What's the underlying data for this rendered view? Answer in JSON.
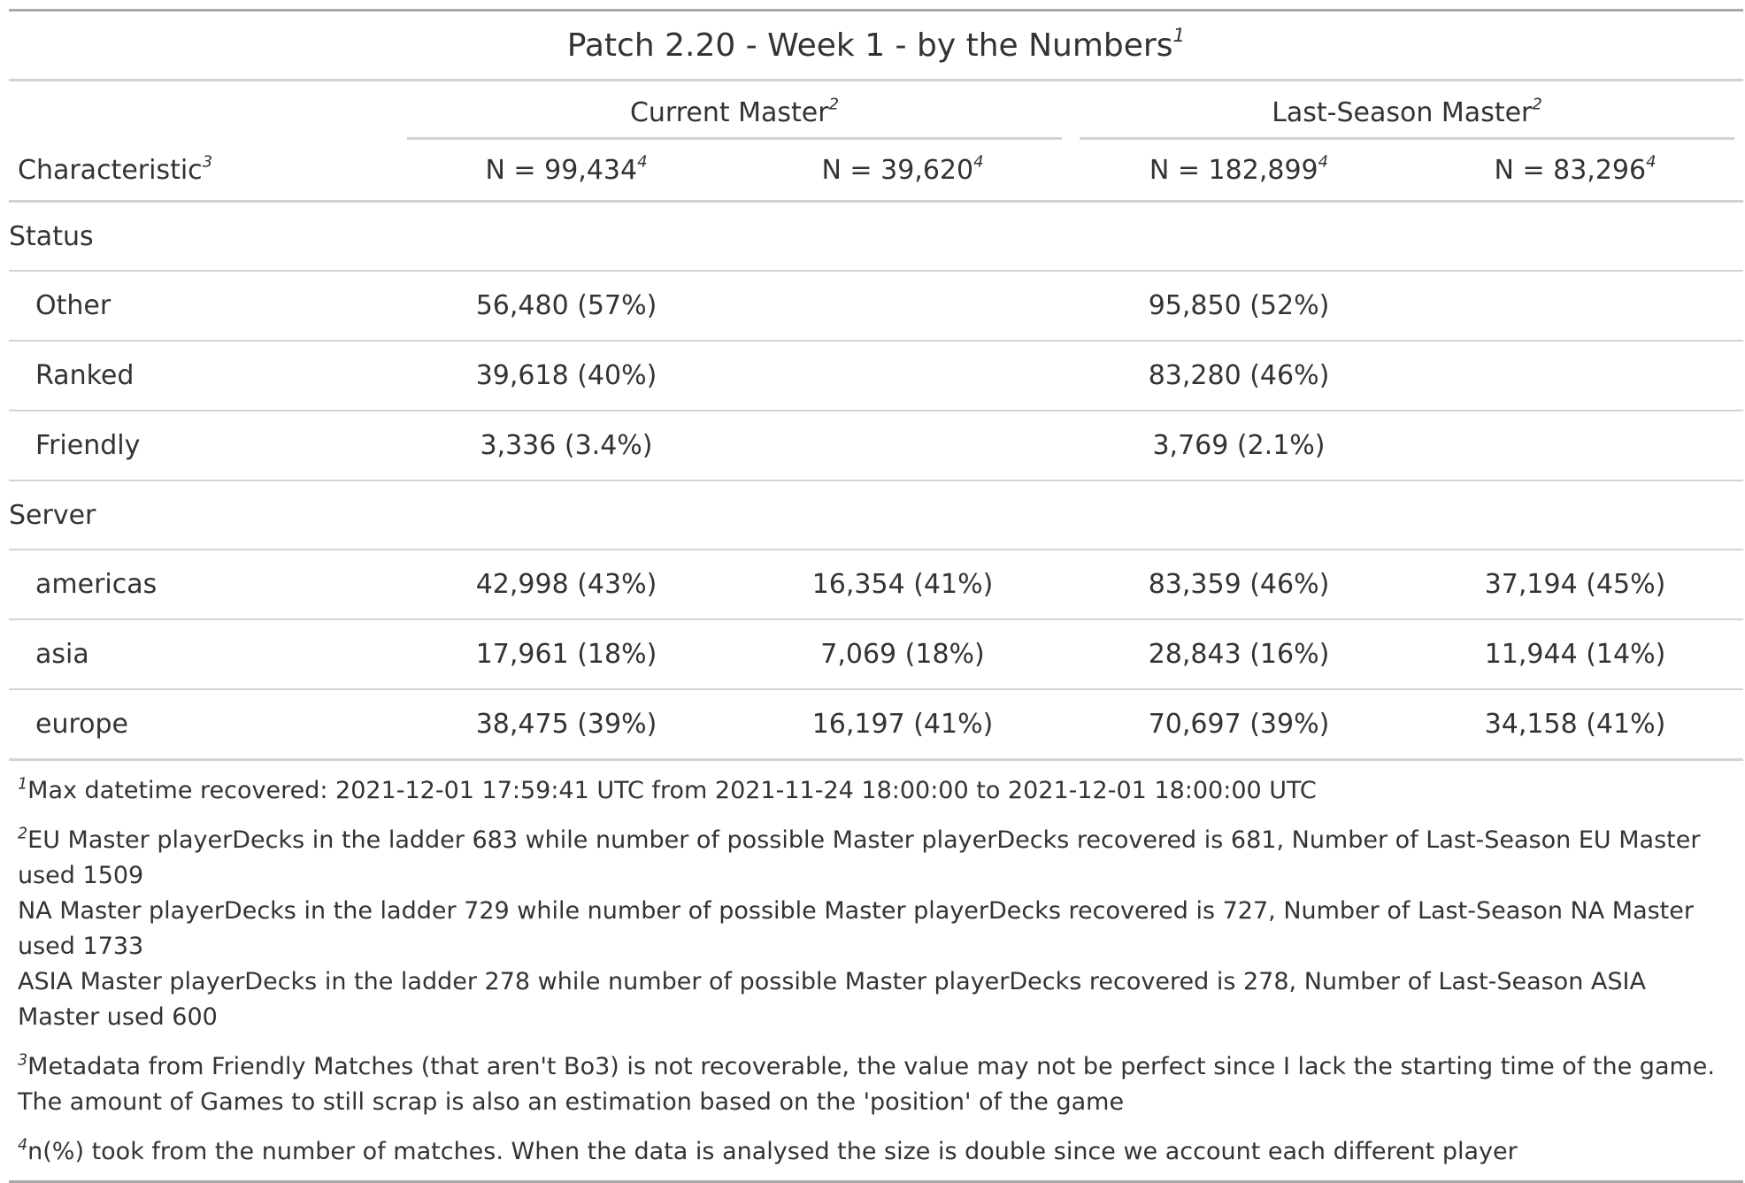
{
  "title": {
    "text": "Patch 2.20 - Week 1 - by the Numbers",
    "mark": "1"
  },
  "spanners": [
    {
      "label": "Current Master",
      "mark": "2"
    },
    {
      "label": "Last-Season Master",
      "mark": "2"
    }
  ],
  "columns": {
    "characteristic": {
      "label": "Characteristic",
      "mark": "3"
    },
    "n": [
      {
        "label": "N = 99,434",
        "mark": "4"
      },
      {
        "label": "N = 39,620",
        "mark": "4"
      },
      {
        "label": "N = 182,899",
        "mark": "4"
      },
      {
        "label": "N = 83,296",
        "mark": "4"
      }
    ]
  },
  "groups": [
    {
      "label": "Status",
      "rows": [
        {
          "label": "Other",
          "values": [
            "56,480 (57%)",
            "",
            "95,850 (52%)",
            ""
          ]
        },
        {
          "label": "Ranked",
          "values": [
            "39,618 (40%)",
            "",
            "83,280 (46%)",
            ""
          ]
        },
        {
          "label": "Friendly",
          "values": [
            "3,336 (3.4%)",
            "",
            "3,769 (2.1%)",
            ""
          ]
        }
      ]
    },
    {
      "label": "Server",
      "rows": [
        {
          "label": "americas",
          "values": [
            "42,998 (43%)",
            "16,354 (41%)",
            "83,359 (46%)",
            "37,194 (45%)"
          ]
        },
        {
          "label": "asia",
          "values": [
            "17,961 (18%)",
            "7,069 (18%)",
            "28,843 (16%)",
            "11,944 (14%)"
          ]
        },
        {
          "label": "europe",
          "values": [
            "38,475 (39%)",
            "16,197 (41%)",
            "70,697 (39%)",
            "34,158 (41%)"
          ]
        }
      ]
    }
  ],
  "footnotes": [
    {
      "mark": "1",
      "lines": [
        "Max datetime recovered: 2021-12-01 17:59:41 UTC from 2021-11-24 18:00:00 to 2021-12-01 18:00:00 UTC"
      ]
    },
    {
      "mark": "2",
      "lines": [
        "EU Master playerDecks in the ladder 683 while number of possible Master playerDecks recovered is 681, Number of Last-Season EU Master used 1509",
        "NA Master playerDecks in the ladder 729 while number of possible Master playerDecks recovered is 727, Number of Last-Season NA Master used 1733",
        "ASIA Master playerDecks in the ladder 278 while number of possible Master playerDecks recovered is 278, Number of Last-Season ASIA Master used 600"
      ]
    },
    {
      "mark": "3",
      "lines": [
        "Metadata from Friendly Matches (that aren't Bo3) is not recoverable, the value may not be perfect since I lack the starting time of the game. The amount of Games to still scrap is also an estimation based on the 'position' of the game"
      ]
    },
    {
      "mark": "4",
      "lines": [
        "n(%) took from the number of matches. When the data is analysed the size is double since we account each different player"
      ]
    }
  ]
}
